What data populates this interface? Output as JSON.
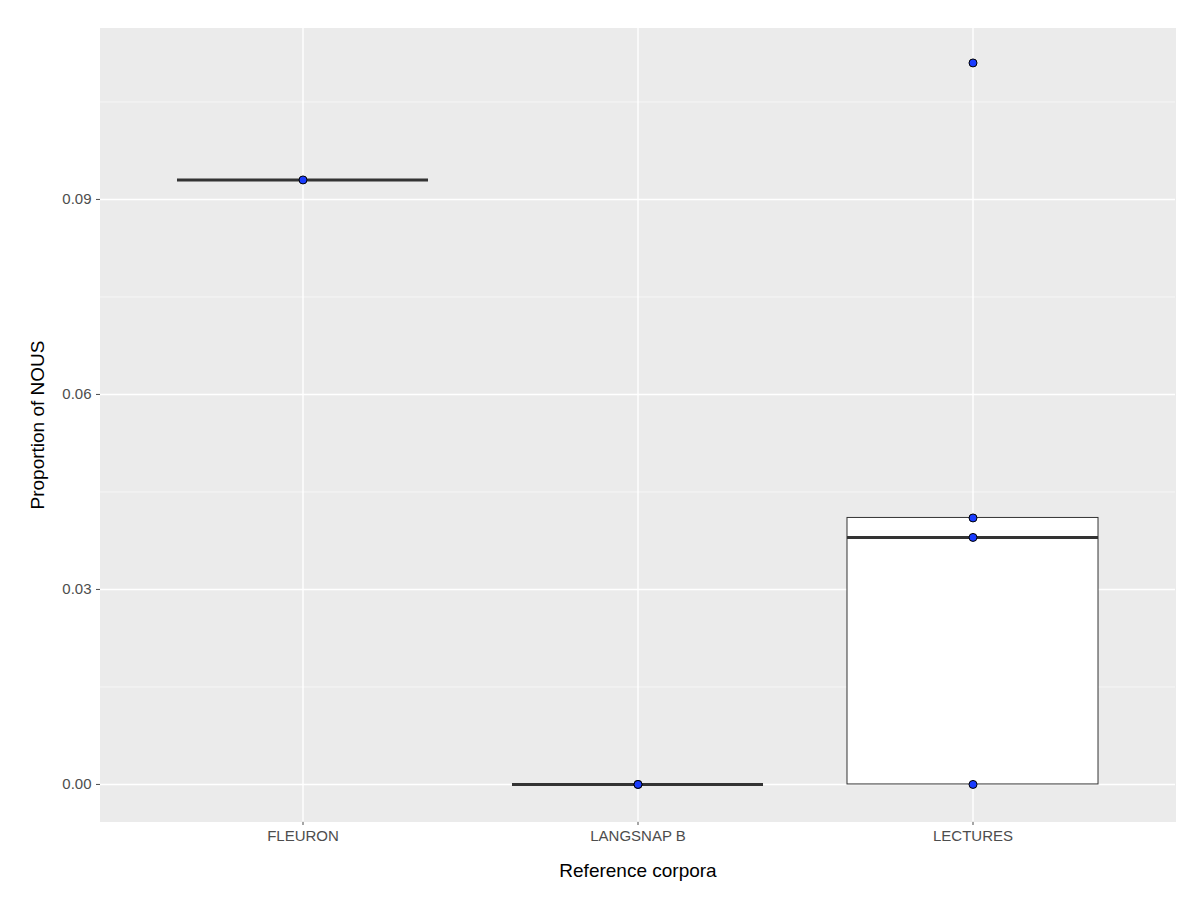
{
  "chart_data": {
    "type": "box",
    "xlabel": "Reference corpora",
    "ylabel": "Proportion of NOUS",
    "categories": [
      "FLEURON",
      "LANGSNAP B",
      "LECTURES"
    ],
    "boxes": [
      {
        "whisker_low": 0.093,
        "q1": 0.093,
        "median": 0.093,
        "q3": 0.093,
        "whisker_high": 0.093
      },
      {
        "whisker_low": 0,
        "q1": 0,
        "median": 0,
        "q3": 0,
        "whisker_high": 0
      },
      {
        "whisker_low": 0,
        "q1": 0,
        "median": 0.038,
        "q3": 0.041,
        "whisker_high": 0.041
      }
    ],
    "points": [
      [
        0.093
      ],
      [
        0,
        0
      ],
      [
        0,
        0.038,
        0.041,
        0.111
      ]
    ],
    "color": "#1a3cff",
    "ylim": [
      -0.0057,
      0.1163
    ],
    "yticks": [
      {
        "value": 0,
        "label": "0.00"
      },
      {
        "value": 0.03,
        "label": "0.03"
      },
      {
        "value": 0.06,
        "label": "0.06"
      },
      {
        "value": 0.09,
        "label": "0.09"
      }
    ],
    "grid": true
  }
}
